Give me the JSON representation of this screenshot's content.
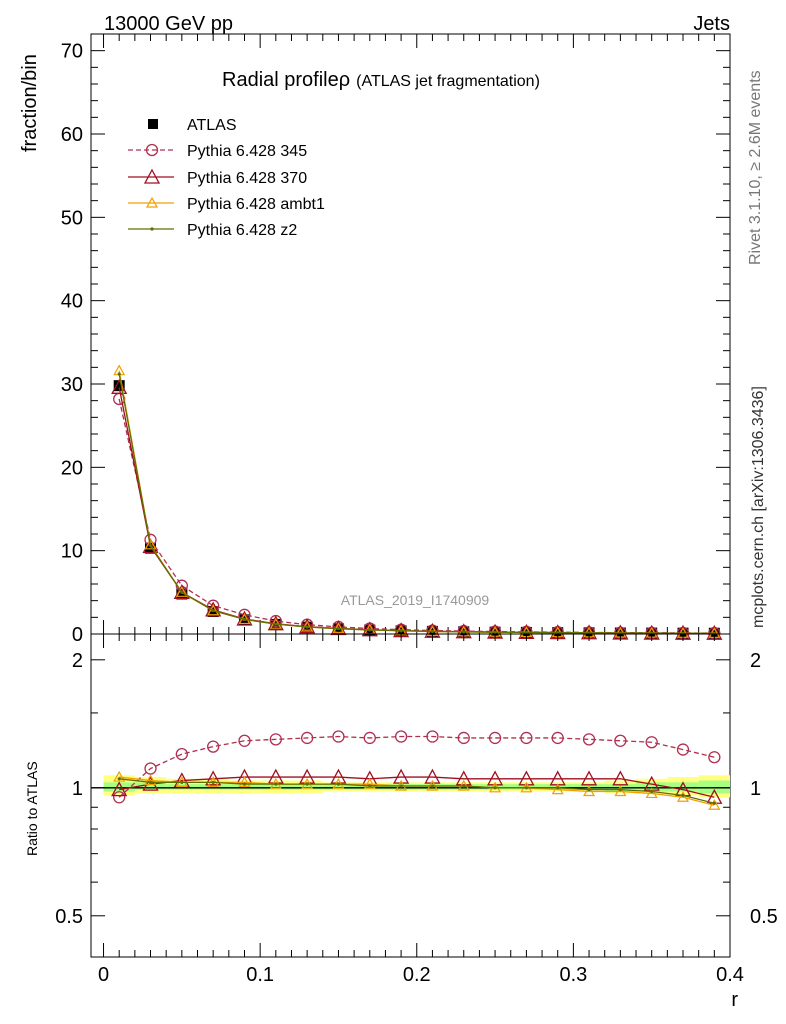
{
  "header": {
    "left": "13000 GeV pp",
    "right": "Jets"
  },
  "side_labels": {
    "rivet": "Rivet 3.1.10, ≥ 2.6M events",
    "mcplots": "mcplots.cern.ch [arXiv:1306.3436]"
  },
  "colors": {
    "atlas": "#000000",
    "p345": "#b03050",
    "p370": "#a01020",
    "ambt1": "#f0a000",
    "z2": "#607000",
    "band_yellow": "#ffff80",
    "band_green": "#80ff80",
    "band_inner": "#c0f0c0",
    "watermark": "#999999"
  },
  "chart_data": [
    {
      "type": "line",
      "title_main": "Radial profile",
      "title_symbol": "ρ",
      "title_sub": "(ATLAS jet fragmentation)",
      "ylabel": "fraction/bin",
      "watermark": "ATLAS_2019_I1740909",
      "xlim": [
        -0.008,
        0.4
      ],
      "ylim": [
        0,
        72
      ],
      "x_ticks": [
        0,
        0.1,
        0.2,
        0.3,
        0.4
      ],
      "y_ticks": [
        0,
        10,
        20,
        30,
        40,
        50,
        60,
        70
      ],
      "y_tick_labels": [
        "0",
        "10",
        "20",
        "30",
        "40",
        "50",
        "60",
        "70"
      ],
      "x": [
        0.01,
        0.03,
        0.05,
        0.07,
        0.09,
        0.11,
        0.13,
        0.15,
        0.17,
        0.19,
        0.21,
        0.23,
        0.25,
        0.27,
        0.29,
        0.31,
        0.33,
        0.35,
        0.37,
        0.39
      ],
      "legend_position": "top-left",
      "series": [
        {
          "name": "ATLAS",
          "key": "atlas",
          "marker": "square",
          "line": "none",
          "values": [
            29.8,
            10.3,
            4.8,
            2.7,
            1.7,
            1.15,
            0.82,
            0.62,
            0.48,
            0.38,
            0.31,
            0.26,
            0.22,
            0.19,
            0.16,
            0.14,
            0.12,
            0.11,
            0.1,
            0.09
          ]
        },
        {
          "name": "Pythia 6.428 345",
          "key": "p345",
          "marker": "circle",
          "line": "dashed",
          "values": [
            28.2,
            11.3,
            5.8,
            3.4,
            2.3,
            1.55,
            1.12,
            0.85,
            0.66,
            0.52,
            0.42,
            0.35,
            0.3,
            0.26,
            0.22,
            0.19,
            0.16,
            0.15,
            0.13,
            0.11
          ]
        },
        {
          "name": "Pythia 6.428 370",
          "key": "p370",
          "marker": "triangle",
          "line": "solid",
          "values": [
            29.6,
            10.5,
            5.0,
            2.9,
            1.8,
            1.23,
            0.88,
            0.67,
            0.51,
            0.41,
            0.33,
            0.28,
            0.23,
            0.2,
            0.17,
            0.15,
            0.13,
            0.11,
            0.1,
            0.09
          ]
        },
        {
          "name": "Pythia 6.428 ambt1",
          "key": "ambt1",
          "marker": "small-triangle",
          "line": "solid",
          "values": [
            31.6,
            10.7,
            5.0,
            2.8,
            1.75,
            1.18,
            0.84,
            0.64,
            0.49,
            0.39,
            0.31,
            0.26,
            0.22,
            0.19,
            0.16,
            0.14,
            0.12,
            0.11,
            0.09,
            0.08
          ]
        },
        {
          "name": "Pythia 6.428 z2",
          "key": "z2",
          "marker": "dot",
          "line": "solid",
          "values": [
            31.2,
            10.6,
            5.0,
            2.8,
            1.75,
            1.18,
            0.84,
            0.64,
            0.49,
            0.39,
            0.31,
            0.26,
            0.22,
            0.19,
            0.16,
            0.14,
            0.12,
            0.11,
            0.09,
            0.08
          ]
        }
      ]
    },
    {
      "type": "line",
      "ylabel": "Ratio to ATLAS",
      "xlabel": "r",
      "xlim": [
        -0.008,
        0.4
      ],
      "ylim": [
        0.4,
        2.3
      ],
      "y_scale": "log",
      "x_ticks": [
        0,
        0.1,
        0.2,
        0.3,
        0.4
      ],
      "x_tick_labels": [
        "0",
        "0.1",
        "0.2",
        "0.3",
        "0.4"
      ],
      "y_ticks": [
        0.5,
        1,
        2
      ],
      "y_tick_labels": [
        "0.5",
        "1",
        "2"
      ],
      "x": [
        0.01,
        0.03,
        0.05,
        0.07,
        0.09,
        0.11,
        0.13,
        0.15,
        0.17,
        0.19,
        0.21,
        0.23,
        0.25,
        0.27,
        0.29,
        0.31,
        0.33,
        0.35,
        0.37,
        0.39
      ],
      "band": {
        "outer_lo": [
          0.96,
          0.97,
          0.97,
          0.97,
          0.97,
          0.97,
          0.97,
          0.98,
          0.98,
          0.98,
          0.98,
          0.98,
          0.98,
          0.98,
          0.98,
          0.98,
          0.97,
          0.97,
          0.96,
          0.95
        ],
        "outer_hi": [
          1.07,
          1.06,
          1.05,
          1.05,
          1.04,
          1.04,
          1.04,
          1.03,
          1.03,
          1.03,
          1.03,
          1.03,
          1.03,
          1.03,
          1.03,
          1.03,
          1.04,
          1.05,
          1.06,
          1.07
        ],
        "inner_lo": [
          0.98,
          0.99,
          0.99,
          0.99,
          0.99,
          0.99,
          0.99,
          0.99,
          0.99,
          0.99,
          0.99,
          0.99,
          0.99,
          0.99,
          0.99,
          0.99,
          0.98,
          0.98,
          0.98,
          0.97
        ],
        "inner_hi": [
          1.03,
          1.03,
          1.02,
          1.02,
          1.02,
          1.02,
          1.02,
          1.02,
          1.02,
          1.02,
          1.02,
          1.02,
          1.02,
          1.02,
          1.02,
          1.02,
          1.02,
          1.03,
          1.03,
          1.04
        ]
      },
      "series": [
        {
          "name": "Pythia 6.428 345",
          "key": "p345",
          "values": [
            0.95,
            1.11,
            1.2,
            1.25,
            1.29,
            1.3,
            1.31,
            1.32,
            1.31,
            1.32,
            1.32,
            1.31,
            1.31,
            1.31,
            1.31,
            1.3,
            1.29,
            1.28,
            1.23,
            1.18
          ]
        },
        {
          "name": "Pythia 6.428 370",
          "key": "p370",
          "values": [
            0.99,
            1.02,
            1.04,
            1.05,
            1.06,
            1.06,
            1.06,
            1.06,
            1.05,
            1.06,
            1.06,
            1.05,
            1.05,
            1.05,
            1.05,
            1.05,
            1.05,
            1.02,
            0.99,
            0.95
          ]
        },
        {
          "name": "Pythia 6.428 ambt1",
          "key": "ambt1",
          "values": [
            1.06,
            1.04,
            1.03,
            1.03,
            1.03,
            1.02,
            1.02,
            1.02,
            1.02,
            1.01,
            1.01,
            1.01,
            1.0,
            1.0,
            0.99,
            0.98,
            0.98,
            0.97,
            0.95,
            0.91
          ]
        },
        {
          "name": "Pythia 6.428 z2",
          "key": "z2",
          "values": [
            1.05,
            1.03,
            1.03,
            1.03,
            1.02,
            1.02,
            1.02,
            1.02,
            1.01,
            1.01,
            1.01,
            1.01,
            1.0,
            1.0,
            1.0,
            0.99,
            0.99,
            0.98,
            0.96,
            0.92
          ]
        }
      ]
    }
  ]
}
